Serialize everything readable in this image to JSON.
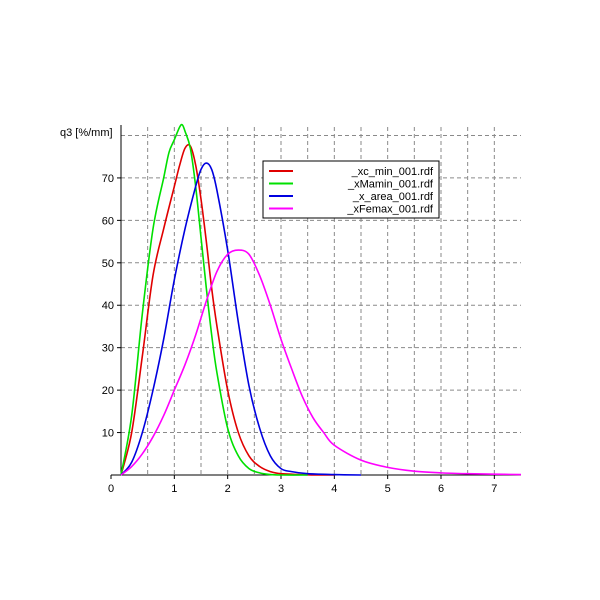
{
  "chart_data": {
    "type": "line",
    "title": "",
    "xlabel": "",
    "ylabel": "q3 [%/mm]",
    "xlim": [
      0,
      7.5
    ],
    "ylim": [
      0,
      82
    ],
    "x_ticks": [
      0,
      1,
      2,
      3,
      4,
      5,
      6,
      7
    ],
    "y_ticks": [
      10,
      20,
      30,
      40,
      50,
      60,
      70
    ],
    "x_grid": [
      0.5,
      1,
      1.5,
      2,
      2.5,
      3,
      3.5,
      4,
      4.5,
      5,
      5.5,
      6,
      6.5,
      7
    ],
    "y_grid": [
      10,
      20,
      30,
      40,
      50,
      60,
      70,
      80
    ],
    "grid": true,
    "grid_style": "dashed",
    "legend_position": "top-right",
    "series": [
      {
        "name": "_xc_min_001.rdf",
        "color": "#e00000",
        "x": [
          0,
          0.2,
          0.4,
          0.6,
          0.8,
          1.0,
          1.1,
          1.2,
          1.3,
          1.4,
          1.5,
          1.6,
          1.7,
          1.8,
          2.0,
          2.2,
          2.4,
          2.6,
          2.8,
          3.0,
          3.5,
          4.0
        ],
        "y": [
          0,
          10,
          28,
          47,
          58,
          68,
          73,
          77,
          77.5,
          73,
          65,
          55,
          44,
          35,
          20,
          10,
          4.5,
          2,
          0.8,
          0.3,
          0.05,
          0
        ]
      },
      {
        "name": "_xMamin_001.rdf",
        "color": "#00e000",
        "x": [
          0,
          0.2,
          0.4,
          0.6,
          0.8,
          0.9,
          1.0,
          1.1,
          1.15,
          1.2,
          1.3,
          1.4,
          1.5,
          1.6,
          1.7,
          1.8,
          2.0,
          2.2,
          2.4,
          2.6,
          2.8,
          3.0,
          3.5
        ],
        "y": [
          0,
          14,
          38,
          58,
          70,
          76,
          79,
          82,
          82.5,
          81,
          77,
          68,
          56,
          44,
          33,
          24,
          11,
          4.5,
          1.5,
          0.5,
          0.1,
          0,
          0
        ]
      },
      {
        "name": "_x_area_001.rdf",
        "color": "#0000e0",
        "x": [
          0,
          0.2,
          0.4,
          0.6,
          0.8,
          1.0,
          1.2,
          1.4,
          1.5,
          1.6,
          1.7,
          1.8,
          2.0,
          2.2,
          2.4,
          2.6,
          2.8,
          3.0,
          3.2,
          3.5,
          4.0,
          4.5
        ],
        "y": [
          0,
          3,
          10,
          20,
          32,
          46,
          58,
          68,
          72,
          73.5,
          72,
          67,
          53,
          36,
          21,
          11,
          4.5,
          1.5,
          0.8,
          0.3,
          0.1,
          0
        ]
      },
      {
        "name": "_xFemax_001.rdf",
        "color": "#ff00ff",
        "x": [
          0,
          0.2,
          0.4,
          0.6,
          0.8,
          1.0,
          1.2,
          1.4,
          1.6,
          1.8,
          2.0,
          2.2,
          2.4,
          2.6,
          2.8,
          3.0,
          3.2,
          3.4,
          3.6,
          3.8,
          4.0,
          4.5,
          5.0,
          5.5,
          6.0,
          6.5,
          7.0,
          7.5
        ],
        "y": [
          0,
          2,
          5,
          9,
          14,
          20,
          26,
          33,
          41,
          48,
          52,
          53,
          52,
          47,
          40,
          32,
          25,
          18.5,
          13.5,
          10,
          7,
          3.5,
          1.8,
          0.9,
          0.5,
          0.3,
          0.2,
          0.1
        ]
      }
    ]
  }
}
